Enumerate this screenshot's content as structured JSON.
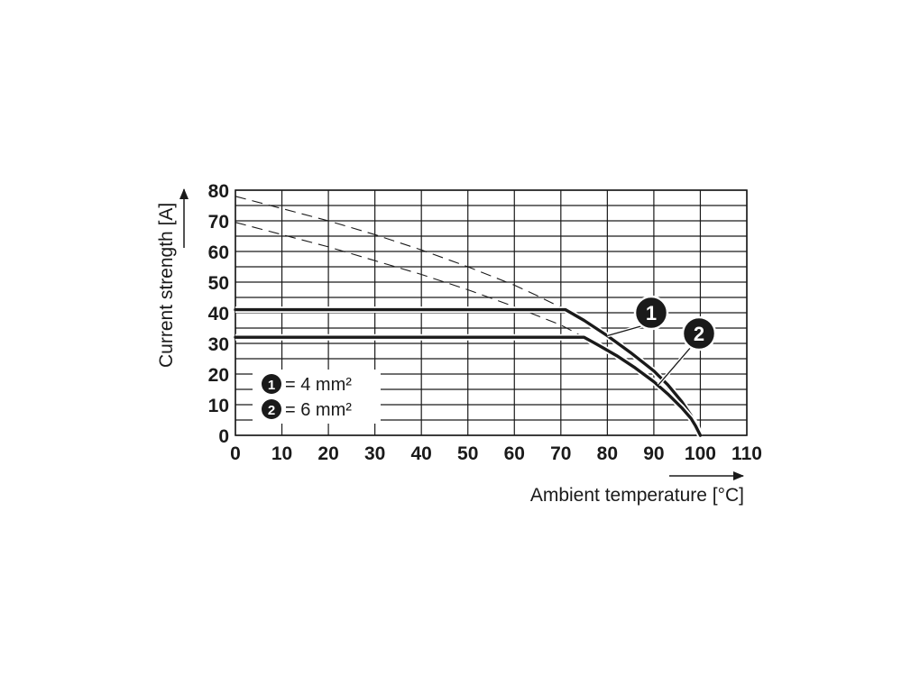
{
  "chart_data": {
    "type": "line",
    "xlabel": "Ambient temperature [°C]",
    "ylabel": "Current strength [A]",
    "xlim": [
      0,
      110
    ],
    "ylim": [
      0,
      80
    ],
    "x_ticks": [
      0,
      10,
      20,
      30,
      40,
      50,
      60,
      70,
      80,
      90,
      100,
      110
    ],
    "y_ticks": [
      0,
      10,
      20,
      30,
      40,
      50,
      60,
      70,
      80
    ],
    "y_minor_step": 5,
    "grid": true,
    "legend_position": "bottom-left",
    "legend": [
      {
        "marker": "1",
        "text": "= 4 mm²"
      },
      {
        "marker": "2",
        "text": "= 6 mm²"
      }
    ],
    "series": [
      {
        "marker": "1",
        "style": "solid",
        "x": [
          0,
          71,
          75,
          80,
          85,
          90,
          93,
          96,
          98,
          99,
          100
        ],
        "y": [
          41,
          41,
          37.5,
          32.5,
          27,
          21,
          16.5,
          11,
          6.5,
          3.5,
          0
        ]
      },
      {
        "marker": "2",
        "style": "solid",
        "x": [
          0,
          75,
          78,
          82,
          86,
          90,
          93,
          96,
          98,
          99,
          100
        ],
        "y": [
          32,
          32,
          29.5,
          26,
          22,
          17.5,
          13.5,
          9,
          5.5,
          3,
          0
        ]
      },
      {
        "marker": "1",
        "style": "dashed",
        "x": [
          0,
          10,
          20,
          30,
          40,
          50,
          60,
          65,
          71
        ],
        "y": [
          78,
          74,
          70,
          65.5,
          60.5,
          55,
          49,
          45.5,
          41
        ]
      },
      {
        "marker": "2",
        "style": "dashed",
        "x": [
          0,
          10,
          20,
          30,
          40,
          50,
          60,
          70,
          75
        ],
        "y": [
          69.5,
          65.5,
          61.5,
          57,
          52.5,
          47.5,
          42,
          36,
          32
        ]
      }
    ],
    "annotations": [
      {
        "text": "1",
        "points_to": {
          "x": 80,
          "y": 32.5
        }
      },
      {
        "text": "2",
        "points_to": {
          "x": 91,
          "y": 16.5
        }
      }
    ]
  }
}
